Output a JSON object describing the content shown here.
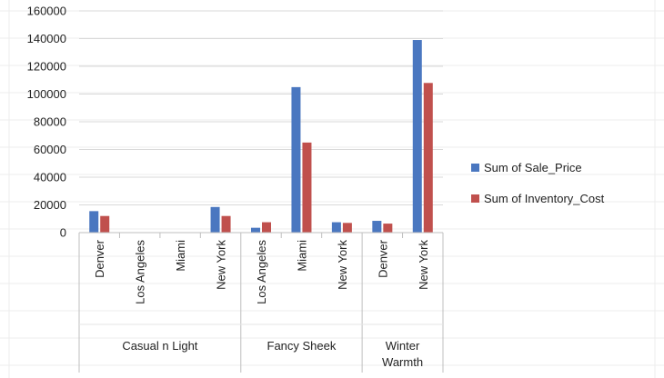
{
  "colors": {
    "sale_price": "#4a77c0",
    "inventory_cost": "#c0504d",
    "grid": "#d9d9d9",
    "axis": "#bfbfbf"
  },
  "chart_data": {
    "type": "bar",
    "ylim": [
      0,
      160000
    ],
    "yticks": [
      0,
      20000,
      40000,
      60000,
      80000,
      100000,
      120000,
      140000,
      160000
    ],
    "grid": true,
    "legend_position": "right",
    "groups": [
      {
        "name": "Casual n Light",
        "categories": [
          "Denver",
          "Los Angeles",
          "Miami",
          "New York"
        ]
      },
      {
        "name": "Fancy Sheek",
        "categories": [
          "Los Angeles",
          "Miami",
          "New York"
        ]
      },
      {
        "name": "Winter Warmth",
        "categories": [
          "Denver",
          "New York"
        ]
      }
    ],
    "series": [
      {
        "name": "Sum of Sale_Price",
        "values": [
          15500,
          0,
          0,
          18500,
          3500,
          105000,
          7500,
          8500,
          139000
        ]
      },
      {
        "name": "Sum of Inventory_Cost",
        "values": [
          12000,
          0,
          0,
          12000,
          7500,
          65000,
          7000,
          6500,
          108000
        ]
      }
    ]
  }
}
